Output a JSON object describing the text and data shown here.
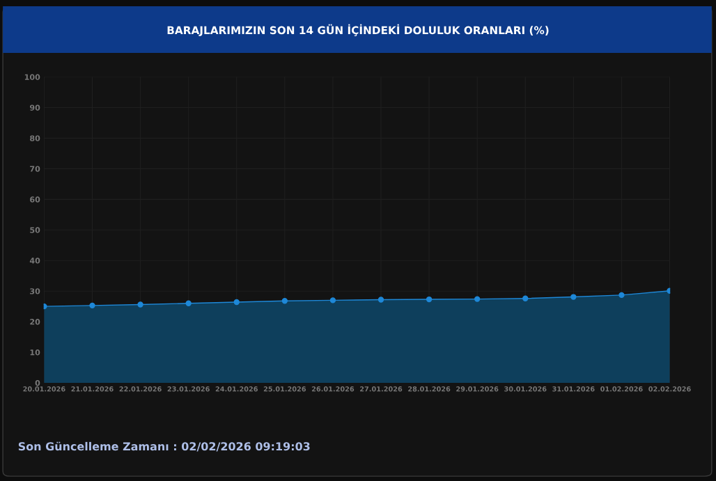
{
  "chart_data": {
    "type": "area",
    "title": "BARAJLARIMIZIN SON 14 GÜN İÇİNDEKİ DOLULUK ORANLARI (%)",
    "categories": [
      "20.01.2026",
      "21.01.2026",
      "22.01.2026",
      "23.01.2026",
      "24.01.2026",
      "25.01.2026",
      "26.01.2026",
      "27.01.2026",
      "28.01.2026",
      "29.01.2026",
      "30.01.2026",
      "31.01.2026",
      "01.02.2026",
      "02.02.2026"
    ],
    "series": [
      {
        "color": "#1e88d8",
        "values": [
          25.0,
          25.3,
          25.6,
          26.0,
          26.4,
          26.8,
          27.0,
          27.2,
          27.3,
          27.4,
          27.6,
          28.1,
          28.7,
          30.1
        ]
      }
    ],
    "ylim": [
      0,
      100
    ],
    "yticks": [
      0,
      10,
      20,
      30,
      40,
      50,
      60,
      70,
      80,
      90,
      100
    ],
    "grid": true,
    "marker": "circle",
    "annotations": [
      "Son Güncelleme Zamanı : 02/02/2026 09:19:03"
    ]
  }
}
